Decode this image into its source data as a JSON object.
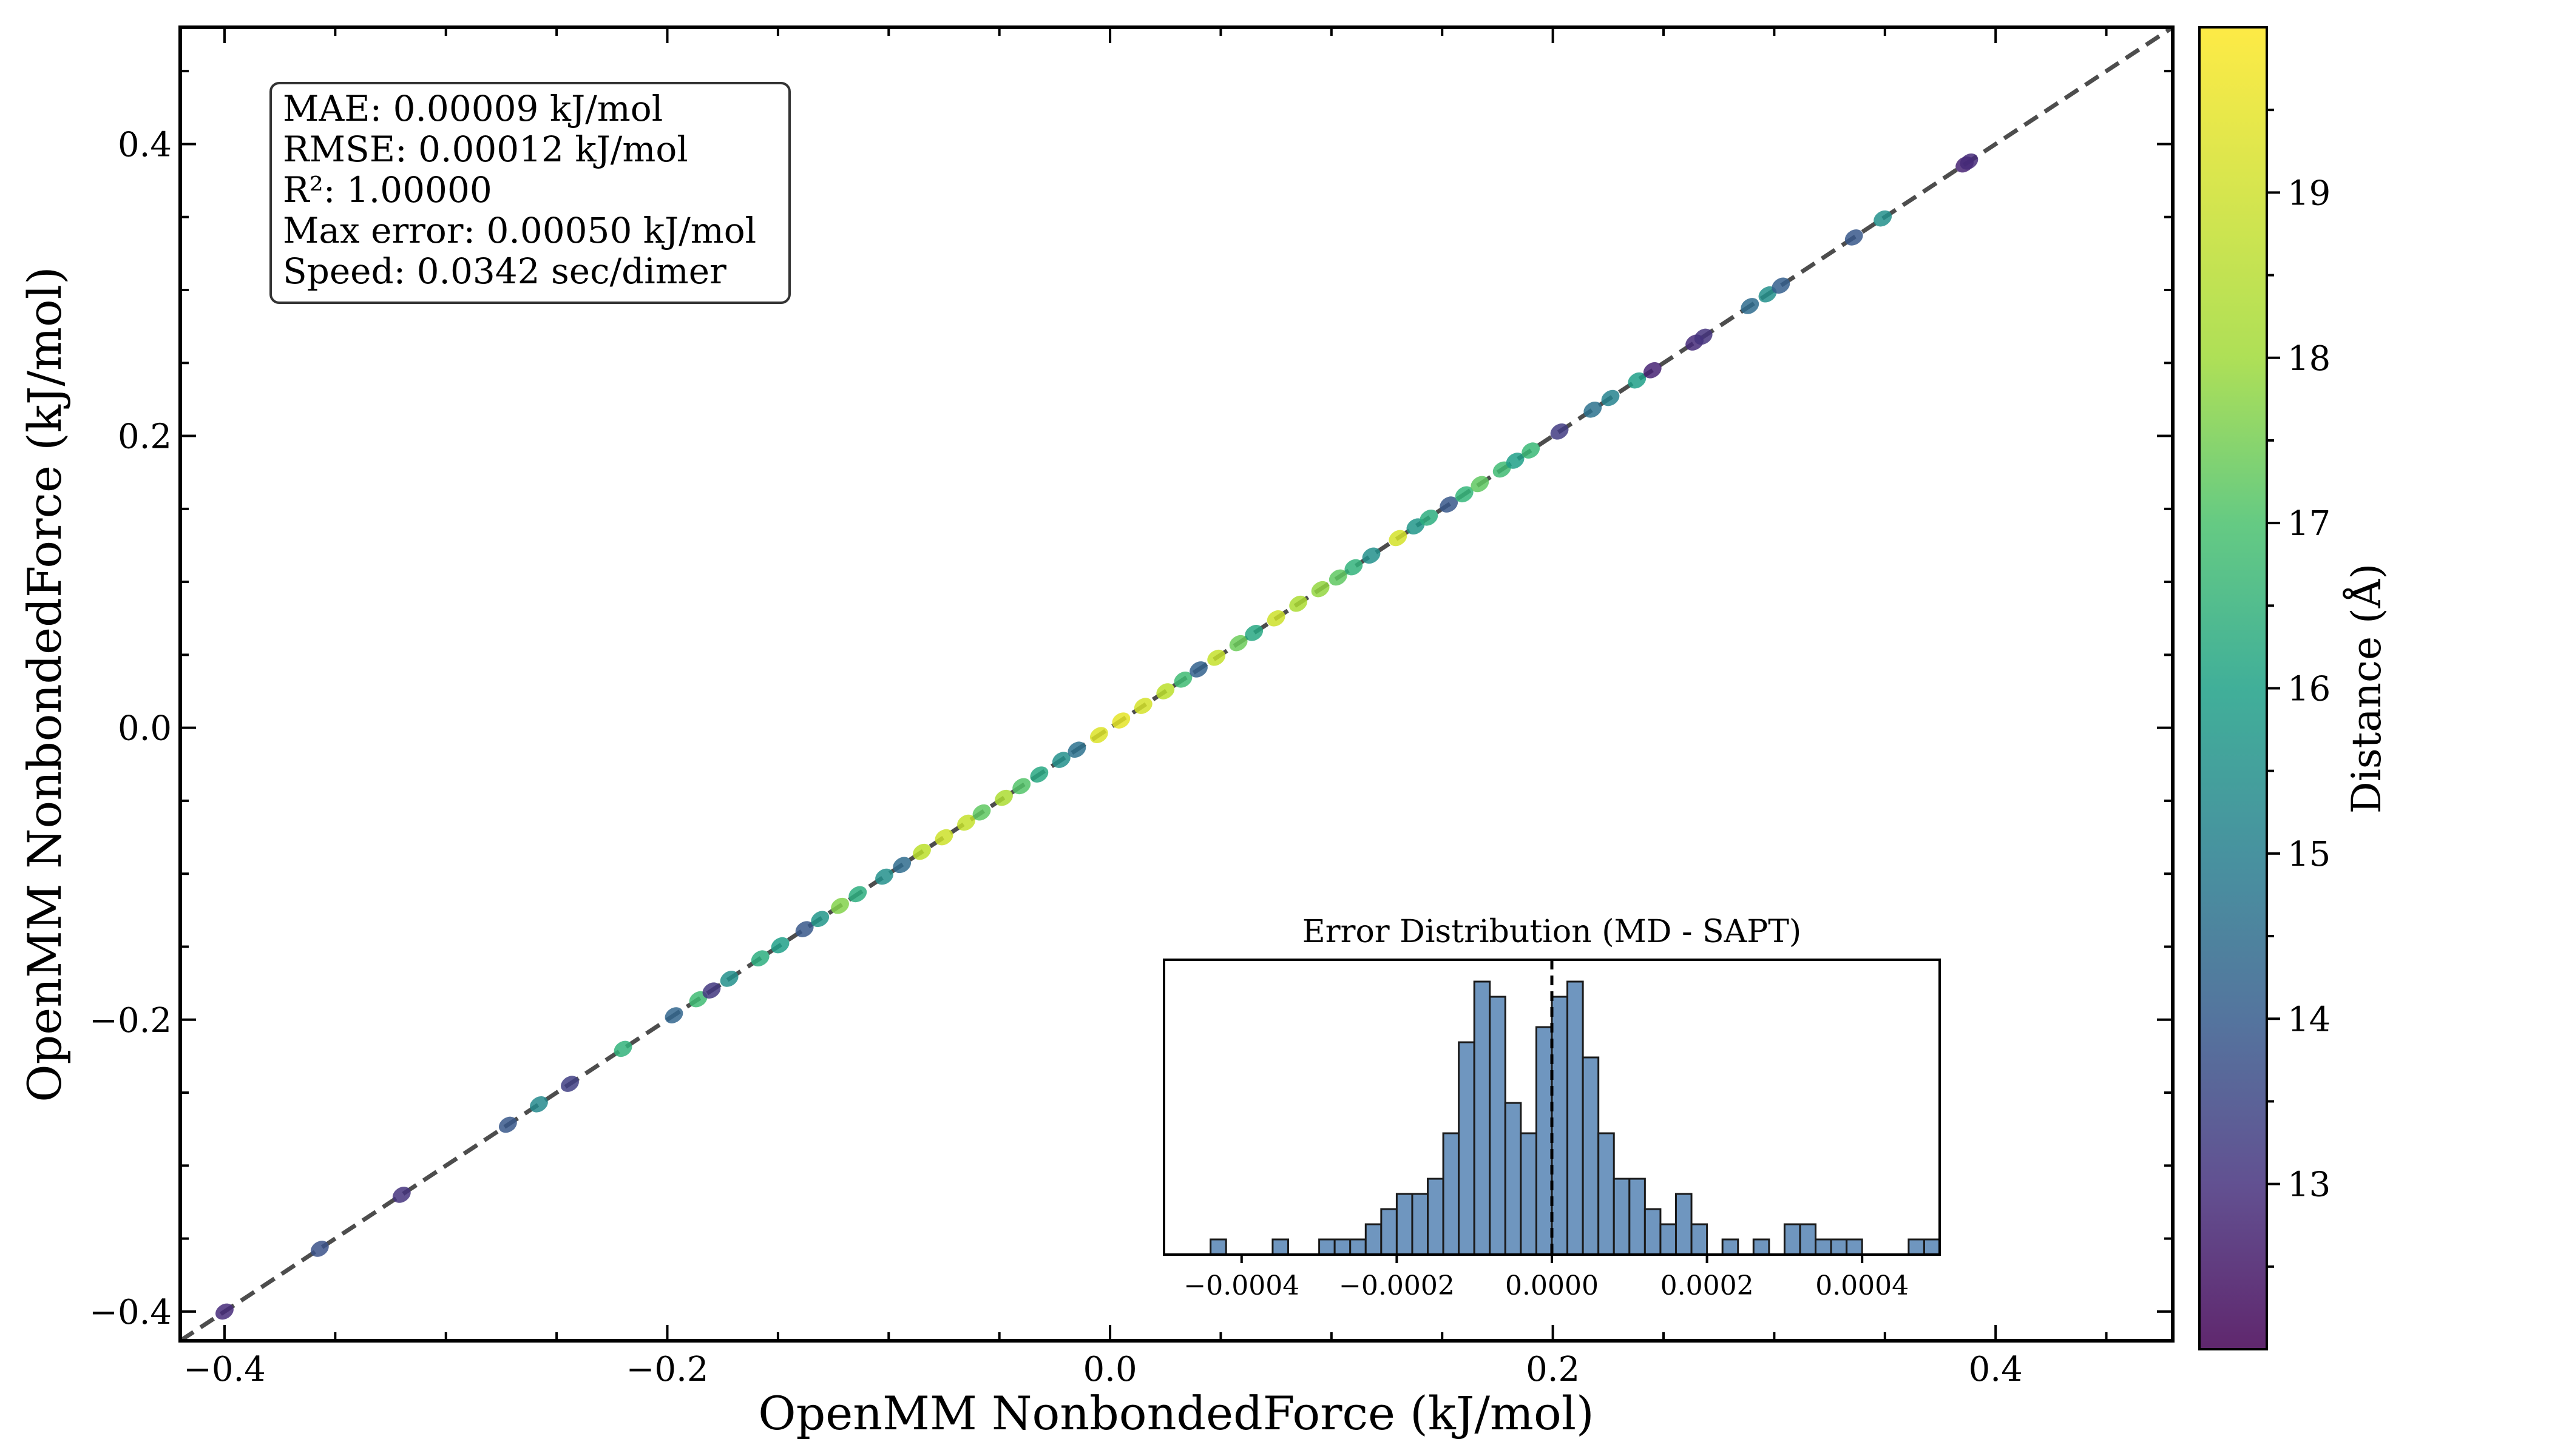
{
  "chart_data": [
    {
      "type": "scatter",
      "xlabel": "OpenMM NonbondedForce (kJ/mol)",
      "ylabel": "OpenMM NonbondedForce (kJ/mol)",
      "xlim": [
        -0.42,
        0.48
      ],
      "ylim": [
        -0.42,
        0.48
      ],
      "x_ticks": [
        -0.4,
        -0.2,
        0.0,
        0.2,
        0.4
      ],
      "x_tick_labels": [
        "−0.4",
        "−0.2",
        "0.0",
        "0.2",
        "0.4"
      ],
      "y_ticks": [
        -0.4,
        -0.2,
        0.0,
        0.2,
        0.4
      ],
      "y_tick_labels": [
        "−0.4",
        "−0.2",
        "0.0",
        "0.2",
        "0.4"
      ],
      "grid": false,
      "reference_line": {
        "style": "dashed",
        "color": "#3a3a3a",
        "from": [
          -0.42,
          -0.42
        ],
        "to": [
          0.48,
          0.48
        ]
      },
      "stats_box": [
        "MAE: 0.00009 kJ/mol",
        "RMSE: 0.00012 kJ/mol",
        "R²: 1.00000",
        "Max error: 0.00050 kJ/mol",
        "Speed: 0.0342 sec/dimer"
      ],
      "color_encoding": "Distance (Å)",
      "colormap": "viridis",
      "color_range": [
        12.0,
        20.0
      ],
      "points": [
        {
          "x": -0.4,
          "y": -0.4,
          "c": 13.0
        },
        {
          "x": -0.357,
          "y": -0.357,
          "c": 14.0
        },
        {
          "x": -0.32,
          "y": -0.32,
          "c": 13.2
        },
        {
          "x": -0.272,
          "y": -0.272,
          "c": 14.2
        },
        {
          "x": -0.258,
          "y": -0.258,
          "c": 15.8
        },
        {
          "x": -0.244,
          "y": -0.244,
          "c": 13.5
        },
        {
          "x": -0.22,
          "y": -0.22,
          "c": 17.2
        },
        {
          "x": -0.197,
          "y": -0.197,
          "c": 14.6
        },
        {
          "x": -0.186,
          "y": -0.186,
          "c": 17.5
        },
        {
          "x": -0.18,
          "y": -0.18,
          "c": 13.3
        },
        {
          "x": -0.172,
          "y": -0.172,
          "c": 16.0
        },
        {
          "x": -0.158,
          "y": -0.158,
          "c": 17.0
        },
        {
          "x": -0.149,
          "y": -0.149,
          "c": 16.5
        },
        {
          "x": -0.138,
          "y": -0.138,
          "c": 14.2
        },
        {
          "x": -0.131,
          "y": -0.131,
          "c": 16.2
        },
        {
          "x": -0.122,
          "y": -0.122,
          "c": 18.5
        },
        {
          "x": -0.114,
          "y": -0.114,
          "c": 17.0
        },
        {
          "x": -0.102,
          "y": -0.102,
          "c": 16.0
        },
        {
          "x": -0.094,
          "y": -0.094,
          "c": 14.8
        },
        {
          "x": -0.085,
          "y": -0.085,
          "c": 19.2
        },
        {
          "x": -0.075,
          "y": -0.075,
          "c": 19.4
        },
        {
          "x": -0.065,
          "y": -0.065,
          "c": 19.3
        },
        {
          "x": -0.058,
          "y": -0.058,
          "c": 18.0
        },
        {
          "x": -0.048,
          "y": -0.048,
          "c": 19.0
        },
        {
          "x": -0.04,
          "y": -0.04,
          "c": 17.8
        },
        {
          "x": -0.032,
          "y": -0.032,
          "c": 16.8
        },
        {
          "x": -0.022,
          "y": -0.022,
          "c": 16.0
        },
        {
          "x": -0.015,
          "y": -0.015,
          "c": 15.0
        },
        {
          "x": -0.005,
          "y": -0.005,
          "c": 19.6
        },
        {
          "x": 0.005,
          "y": 0.005,
          "c": 19.7
        },
        {
          "x": 0.015,
          "y": 0.015,
          "c": 19.5
        },
        {
          "x": 0.025,
          "y": 0.025,
          "c": 19.2
        },
        {
          "x": 0.033,
          "y": 0.033,
          "c": 17.5
        },
        {
          "x": 0.04,
          "y": 0.04,
          "c": 14.5
        },
        {
          "x": 0.048,
          "y": 0.048,
          "c": 19.3
        },
        {
          "x": 0.058,
          "y": 0.058,
          "c": 18.2
        },
        {
          "x": 0.065,
          "y": 0.065,
          "c": 16.8
        },
        {
          "x": 0.075,
          "y": 0.075,
          "c": 19.4
        },
        {
          "x": 0.085,
          "y": 0.085,
          "c": 19.0
        },
        {
          "x": 0.095,
          "y": 0.095,
          "c": 18.7
        },
        {
          "x": 0.103,
          "y": 0.103,
          "c": 18.0
        },
        {
          "x": 0.11,
          "y": 0.11,
          "c": 17.2
        },
        {
          "x": 0.118,
          "y": 0.118,
          "c": 16.0
        },
        {
          "x": 0.13,
          "y": 0.13,
          "c": 19.5
        },
        {
          "x": 0.138,
          "y": 0.138,
          "c": 16.2
        },
        {
          "x": 0.144,
          "y": 0.144,
          "c": 17.0
        },
        {
          "x": 0.153,
          "y": 0.153,
          "c": 14.2
        },
        {
          "x": 0.16,
          "y": 0.16,
          "c": 17.3
        },
        {
          "x": 0.167,
          "y": 0.167,
          "c": 18.0
        },
        {
          "x": 0.177,
          "y": 0.177,
          "c": 17.5
        },
        {
          "x": 0.183,
          "y": 0.183,
          "c": 16.5
        },
        {
          "x": 0.19,
          "y": 0.19,
          "c": 17.4
        },
        {
          "x": 0.203,
          "y": 0.203,
          "c": 13.4
        },
        {
          "x": 0.218,
          "y": 0.218,
          "c": 15.0
        },
        {
          "x": 0.226,
          "y": 0.226,
          "c": 15.6
        },
        {
          "x": 0.238,
          "y": 0.238,
          "c": 16.5
        },
        {
          "x": 0.245,
          "y": 0.245,
          "c": 12.8
        },
        {
          "x": 0.264,
          "y": 0.264,
          "c": 13.0
        },
        {
          "x": 0.268,
          "y": 0.268,
          "c": 13.2
        },
        {
          "x": 0.289,
          "y": 0.289,
          "c": 14.8
        },
        {
          "x": 0.297,
          "y": 0.297,
          "c": 16.0
        },
        {
          "x": 0.303,
          "y": 0.303,
          "c": 14.4
        },
        {
          "x": 0.336,
          "y": 0.336,
          "c": 14.2
        },
        {
          "x": 0.349,
          "y": 0.349,
          "c": 16.0
        },
        {
          "x": 0.386,
          "y": 0.386,
          "c": 12.8
        },
        {
          "x": 0.388,
          "y": 0.388,
          "c": 13.0
        }
      ]
    },
    {
      "type": "bar",
      "title": "Error Distribution (MD - SAPT)",
      "bin_width": 2e-05,
      "xlim": [
        -0.0005,
        0.0005
      ],
      "x_ticks": [
        -0.0004,
        -0.0002,
        0.0,
        0.0002,
        0.0004
      ],
      "x_tick_labels": [
        "−0.0004",
        "−0.0002",
        "0.0000",
        "0.0002",
        "0.0004"
      ],
      "reference_line": {
        "x": 0.0,
        "style": "dashed",
        "color": "#000000"
      },
      "bar_color": "#6f96bf",
      "bin_starts": [
        -0.00044,
        -0.0004,
        -0.00036,
        -0.00032,
        -0.0003,
        -0.00028,
        -0.00026,
        -0.00024,
        -0.00022,
        -0.0002,
        -0.00018,
        -0.00016,
        -0.00014,
        -0.00012,
        -0.0001,
        -8e-05,
        -6e-05,
        -4e-05,
        -2e-05,
        0.0,
        2e-05,
        4e-05,
        6e-05,
        8e-05,
        0.0001,
        0.00012,
        0.00014,
        0.00016,
        0.00018,
        0.0002,
        0.00022,
        0.00024,
        0.00026,
        0.00028,
        0.0003,
        0.00032,
        0.00034,
        0.00036,
        0.00038,
        0.0004,
        0.00042,
        0.00044,
        0.00046,
        0.00048
      ],
      "counts": [
        1,
        0,
        1,
        0,
        1,
        1,
        1,
        2,
        3,
        4,
        4,
        5,
        8,
        14,
        18,
        17,
        10,
        8,
        15,
        17,
        18,
        13,
        8,
        5,
        5,
        3,
        2,
        4,
        2,
        0,
        1,
        0,
        1,
        0,
        2,
        2,
        1,
        1,
        1,
        0,
        0,
        0,
        1,
        1
      ]
    }
  ],
  "colorbar": {
    "label": "Distance (Å)",
    "ticks": [
      13,
      14,
      15,
      16,
      17,
      18,
      19
    ],
    "tick_labels": [
      "13",
      "14",
      "15",
      "16",
      "17",
      "18",
      "19"
    ],
    "range": [
      12.0,
      20.0
    ]
  }
}
